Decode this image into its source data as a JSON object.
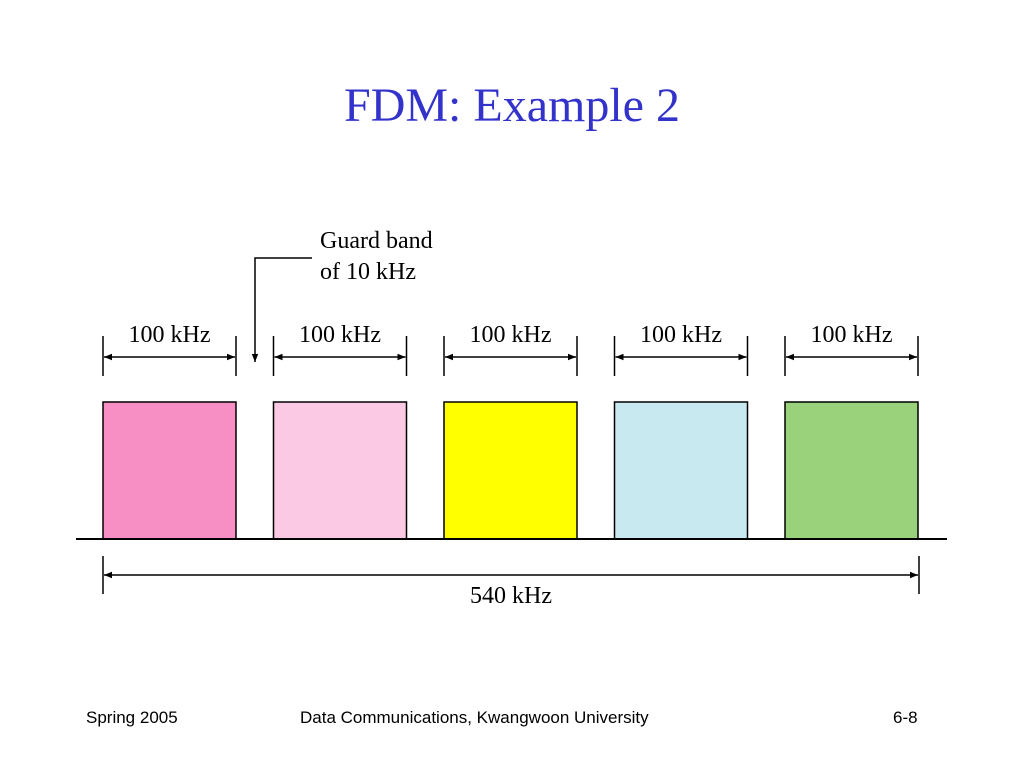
{
  "slide": {
    "title": "FDM: Example 2"
  },
  "diagram": {
    "guard_band_label_line1": "Guard band",
    "guard_band_label_line2": "of 10 kHz",
    "channel_width_label": "100 kHz",
    "total_bandwidth_label": "540 kHz",
    "channels": [
      {
        "label": "100 kHz",
        "color": "#f78fc5"
      },
      {
        "label": "100 kHz",
        "color": "#fcc9e5"
      },
      {
        "label": "100 kHz",
        "color": "#ffff00"
      },
      {
        "label": "100 kHz",
        "color": "#c9e9f1"
      },
      {
        "label": "100 kHz",
        "color": "#9ad27c"
      }
    ]
  },
  "footer": {
    "left": "Spring 2005",
    "center": "Data Communications, Kwangwoon University",
    "right": "6-8"
  }
}
